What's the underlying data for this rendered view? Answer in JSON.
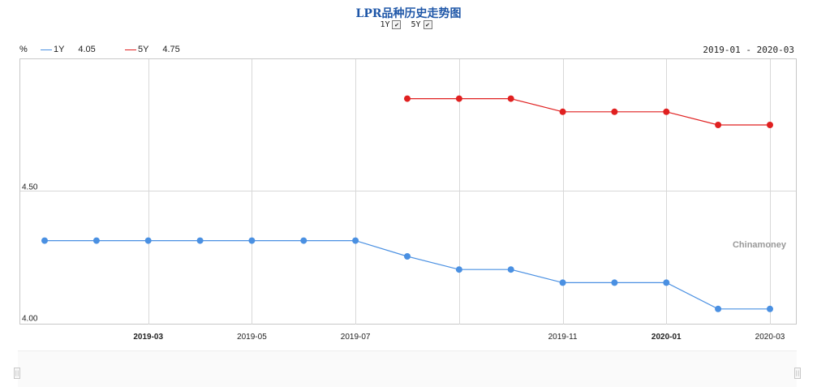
{
  "title": "LPR品种历史走势图",
  "toggles": [
    {
      "label": "1Y",
      "checked": true
    },
    {
      "label": "5Y",
      "checked": true
    }
  ],
  "legend": {
    "unit": "%",
    "items": [
      {
        "name": "1Y",
        "value": "4.05",
        "color": "#4a90e2"
      },
      {
        "name": "5Y",
        "value": "4.75",
        "color": "#e02020"
      }
    ]
  },
  "date_range": "2019-01 - 2020-03",
  "watermark": "Chinamoney",
  "chart_data": {
    "type": "line",
    "x": [
      "2019-01",
      "2019-02",
      "2019-03",
      "2019-04",
      "2019-05",
      "2019-06",
      "2019-07",
      "2019-08",
      "2019-09",
      "2019-10",
      "2019-11",
      "2019-12",
      "2020-01",
      "2020-02",
      "2020-03"
    ],
    "x_tick_labels": [
      {
        "x": "2019-03",
        "label": "2019-03",
        "bold": true
      },
      {
        "x": "2019-05",
        "label": "2019-05",
        "bold": false
      },
      {
        "x": "2019-07",
        "label": "2019-07",
        "bold": false
      },
      {
        "x": "2019-11",
        "label": "2019-11",
        "bold": false
      },
      {
        "x": "2020-01",
        "label": "2020-01",
        "bold": true
      },
      {
        "x": "2020-03",
        "label": "2020-03",
        "bold": false
      }
    ],
    "x_gridlines": [
      "2019-03",
      "2019-05",
      "2019-07",
      "2019-09",
      "2019-11",
      "2020-01",
      "2020-03"
    ],
    "y_ticks": [
      {
        "value": 4.0,
        "label": "4.00"
      },
      {
        "value": 4.5,
        "label": "4.50"
      }
    ],
    "ylim": [
      4.0,
      5.0
    ],
    "series": [
      {
        "name": "1Y",
        "color": "#4a90e2",
        "values": [
          4.31,
          4.31,
          4.31,
          4.31,
          4.31,
          4.31,
          4.31,
          4.25,
          4.2,
          4.2,
          4.15,
          4.15,
          4.15,
          4.05,
          4.05
        ]
      },
      {
        "name": "5Y",
        "color": "#e02020",
        "values": [
          null,
          null,
          null,
          null,
          null,
          null,
          null,
          4.85,
          4.85,
          4.85,
          4.8,
          4.8,
          4.8,
          4.75,
          4.75
        ]
      }
    ]
  }
}
